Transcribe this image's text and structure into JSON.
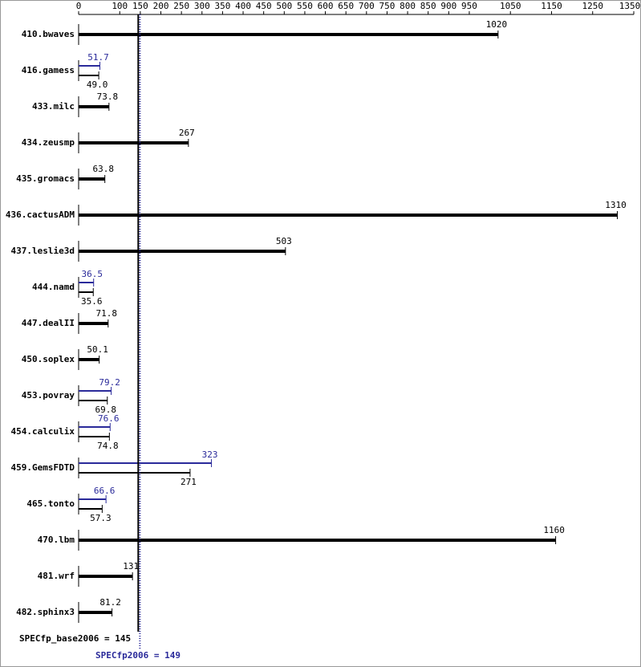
{
  "chart_data": {
    "type": "bar",
    "orientation": "horizontal",
    "categories": [
      "410.bwaves",
      "416.gamess",
      "433.milc",
      "434.zeusmp",
      "435.gromacs",
      "436.cactusADM",
      "437.leslie3d",
      "444.namd",
      "447.dealII",
      "450.soplex",
      "453.povray",
      "454.calculix",
      "459.GemsFDTD",
      "465.tonto",
      "470.lbm",
      "481.wrf",
      "482.sphinx3"
    ],
    "series": [
      {
        "color": "#000000",
        "values": [
          1020,
          49.0,
          73.8,
          267,
          63.8,
          1310,
          503,
          35.6,
          71.8,
          50.1,
          69.8,
          74.8,
          271,
          57.3,
          1160,
          131,
          81.2
        ],
        "value_labels": [
          "1020",
          "49.0",
          "73.8",
          "267",
          "63.8",
          "1310",
          "503",
          "35.6",
          "71.8",
          "50.1",
          "69.8",
          "74.8",
          "271",
          "57.3",
          "1160",
          "131",
          "81.2"
        ]
      },
      {
        "color": "#2a2a9a",
        "values": [
          null,
          51.7,
          null,
          null,
          null,
          null,
          null,
          36.5,
          null,
          null,
          79.2,
          76.6,
          323,
          66.6,
          null,
          null,
          null
        ],
        "value_labels": [
          null,
          "51.7",
          null,
          null,
          null,
          null,
          null,
          "36.5",
          null,
          null,
          "79.2",
          "76.6",
          "323",
          "66.6",
          null,
          null,
          null
        ]
      }
    ],
    "xlim": [
      0,
      1350
    ],
    "xticks": [
      0,
      100,
      150,
      200,
      250,
      300,
      350,
      400,
      450,
      500,
      550,
      600,
      650,
      700,
      750,
      800,
      850,
      900,
      950,
      1050,
      1150,
      1250,
      1350
    ],
    "base_score": 145,
    "base_score_label": "SPECfp_base2006 = 145",
    "peak_score": 149,
    "peak_score_label": "SPECfp2006 = 149"
  }
}
